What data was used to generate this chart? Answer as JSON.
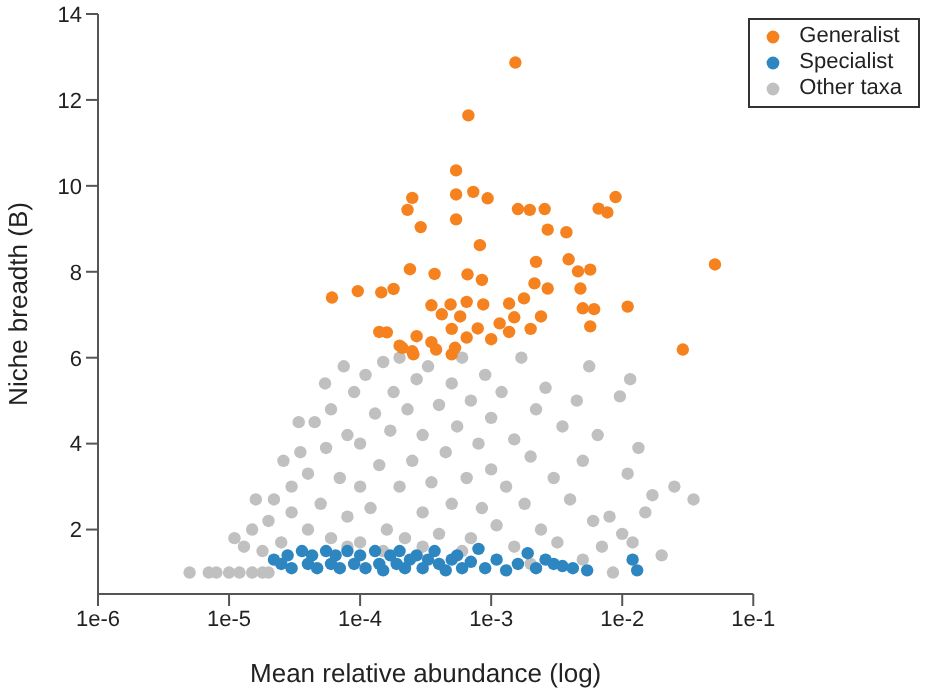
{
  "chart_data": {
    "type": "scatter",
    "xlabel": "Mean relative abundance (log)",
    "ylabel": "Niche breadth (B)",
    "log": "x",
    "xlim": [
      1e-06,
      0.1
    ],
    "xticks": [
      {
        "value": 1e-06,
        "label": "1e-6"
      },
      {
        "value": 1e-05,
        "label": "1e-5"
      },
      {
        "value": 0.0001,
        "label": "1e-4"
      },
      {
        "value": 0.001,
        "label": "1e-3"
      },
      {
        "value": 0.01,
        "label": "1e-2"
      },
      {
        "value": 0.1,
        "label": "1e-1"
      }
    ],
    "ylim": [
      0.5,
      14
    ],
    "yticks": [
      2,
      4,
      6,
      8,
      10,
      12,
      14
    ],
    "grid": false,
    "legend": "top right",
    "marker": "circle",
    "series": [
      {
        "name": "Other taxa",
        "color": "#c0c0c0",
        "x": [
          5e-06,
          7e-06,
          8e-06,
          1e-05,
          1.2e-05,
          1.5e-05,
          1.8e-05,
          2e-05,
          1.1e-05,
          1.3e-05,
          1.5e-05,
          1.6e-05,
          1.8e-05,
          2e-05,
          2.2e-05,
          2.6e-05,
          2.5e-05,
          3e-05,
          3e-05,
          3.4e-05,
          3.5e-05,
          4e-05,
          4e-05,
          4.5e-05,
          5e-05,
          5.4e-05,
          5.5e-05,
          6e-05,
          6e-05,
          7e-05,
          7.5e-05,
          8e-05,
          8e-05,
          9e-05,
          0.0001,
          0.0001,
          0.0001,
          0.00011,
          0.00012,
          0.00013,
          0.00014,
          0.00015,
          0.00016,
          0.00017,
          0.00018,
          0.0002,
          0.0002,
          0.00022,
          0.00023,
          0.00025,
          0.00027,
          0.0003,
          0.0003,
          0.00033,
          0.00035,
          0.0004,
          0.0004,
          0.00045,
          0.0005,
          0.0005,
          0.00055,
          0.0006,
          0.00065,
          0.0007,
          0.0007,
          0.0008,
          0.00085,
          0.0009,
          0.001,
          0.001,
          0.0011,
          0.0012,
          0.0013,
          0.0015,
          0.0015,
          0.0017,
          0.0018,
          0.002,
          0.0022,
          0.0024,
          0.0026,
          0.003,
          0.0032,
          0.0035,
          0.004,
          0.0045,
          0.005,
          0.0056,
          0.006,
          0.0065,
          0.007,
          0.008,
          0.0096,
          0.01,
          0.011,
          0.0115,
          0.012,
          0.0133,
          0.015,
          0.017,
          0.02,
          0.025,
          0.035,
          8e-05,
          0.00015,
          0.0003,
          0.0006,
          0.002,
          0.005,
          0.0085
        ],
        "values": [
          1,
          1,
          1,
          1,
          1,
          1,
          1,
          1,
          1.8,
          1.6,
          2,
          2.7,
          1.5,
          2.2,
          2.7,
          3.6,
          1.7,
          2.4,
          3,
          4.5,
          3.8,
          2,
          3.3,
          4.5,
          2.6,
          5.4,
          3.9,
          1.8,
          4.8,
          3.2,
          5.8,
          2.3,
          4.2,
          5.2,
          1.7,
          3,
          4,
          5.6,
          2.5,
          4.7,
          3.5,
          5.9,
          2,
          4.3,
          5.2,
          3,
          6,
          1.8,
          4.8,
          3.6,
          5.5,
          2.4,
          4.2,
          5.8,
          3.1,
          1.9,
          4.9,
          3.8,
          5.4,
          2.6,
          4.4,
          6,
          3.2,
          1.8,
          5,
          4,
          2.5,
          5.6,
          3.4,
          4.6,
          2.1,
          5.2,
          3,
          4.1,
          1.6,
          6,
          2.6,
          3.7,
          4.8,
          2,
          5.3,
          3.2,
          1.7,
          4.4,
          2.7,
          5,
          3.6,
          5.8,
          2.2,
          4.2,
          1.6,
          2.3,
          5.1,
          1.9,
          3.3,
          5.5,
          1.7,
          3.9,
          2.4,
          2.8,
          1.4,
          3,
          2.7,
          1.6,
          1.5,
          1.6,
          1.5,
          1.2,
          1.3,
          1
        ]
      },
      {
        "name": "Specialist",
        "color": "#2e86c1",
        "x": [
          2.2e-05,
          2.5e-05,
          2.8e-05,
          3e-05,
          3.6e-05,
          4e-05,
          4.3e-05,
          4.7e-05,
          5.5e-05,
          6e-05,
          6.5e-05,
          7e-05,
          8e-05,
          9e-05,
          0.0001,
          0.00011,
          0.00013,
          0.00014,
          0.00015,
          0.00017,
          0.00019,
          0.0002,
          0.00022,
          0.00024,
          0.00027,
          0.0003,
          0.00033,
          0.00037,
          0.0004,
          0.00045,
          0.0005,
          0.00055,
          0.0006,
          0.0007,
          0.0008,
          0.0009,
          0.0011,
          0.0013,
          0.0016,
          0.0019,
          0.0022,
          0.0026,
          0.003,
          0.0035,
          0.0042,
          0.0054,
          0.012,
          0.013
        ],
        "values": [
          1.3,
          1.2,
          1.4,
          1.1,
          1.5,
          1.2,
          1.4,
          1.1,
          1.5,
          1.2,
          1.4,
          1.1,
          1.5,
          1.2,
          1.4,
          1.1,
          1.5,
          1.2,
          1.05,
          1.4,
          1.2,
          1.5,
          1.1,
          1.3,
          1.4,
          1.1,
          1.3,
          1.5,
          1.2,
          1.05,
          1.3,
          1.4,
          1.1,
          1.25,
          1.55,
          1.1,
          1.3,
          1.05,
          1.2,
          1.45,
          1.1,
          1.3,
          1.2,
          1.15,
          1.1,
          1.05,
          1.3,
          1.05
        ]
      },
      {
        "name": "Generalist",
        "color": "#f5821f",
        "x": [
          0.00153,
          0.00067,
          0.00054,
          0.00025,
          0.00023,
          0.00029,
          0.00054,
          0.00073,
          0.00094,
          0.00054,
          0.0016,
          0.00197,
          0.00256,
          0.0066,
          0.0077,
          0.0089,
          0.0027,
          0.00375,
          0.00082,
          0.051,
          0.0022,
          0.0039,
          0.0046,
          0.0057,
          0.00024,
          0.00037,
          0.00066,
          0.00085,
          6.1e-05,
          9.6e-05,
          0.000145,
          0.00018,
          0.00214,
          0.0027,
          0.0048,
          0.011,
          0.005,
          0.0061,
          0.0057,
          0.029,
          0.00035,
          0.00049,
          0.00065,
          0.00087,
          0.00137,
          0.00178,
          0.00042,
          0.00058,
          0.00079,
          0.00116,
          0.0015,
          0.0024,
          0.00014,
          0.00016,
          0.00027,
          0.00035,
          0.0005,
          0.00065,
          0.001,
          0.00137,
          0.002,
          0.0002,
          0.00025,
          0.00038,
          0.00053,
          0.00021,
          0.000255,
          0.0005
        ],
        "values": [
          12.87,
          11.64,
          10.36,
          9.72,
          9.44,
          9.04,
          9.8,
          9.86,
          9.71,
          9.22,
          9.46,
          9.44,
          9.46,
          9.47,
          9.38,
          9.74,
          8.98,
          8.92,
          8.62,
          8.17,
          8.23,
          8.29,
          8.01,
          8.05,
          8.06,
          7.95,
          7.94,
          7.81,
          7.4,
          7.55,
          7.52,
          7.6,
          7.73,
          7.61,
          7.61,
          7.19,
          7.15,
          7.13,
          6.73,
          6.19,
          7.22,
          7.24,
          7.3,
          7.24,
          7.26,
          7.38,
          7.01,
          6.96,
          6.68,
          6.8,
          6.94,
          6.96,
          6.6,
          6.59,
          6.5,
          6.36,
          6.67,
          6.47,
          6.43,
          6.6,
          6.67,
          6.28,
          6.15,
          6.19,
          6.23,
          6.23,
          6.08,
          6.08
        ]
      }
    ]
  }
}
